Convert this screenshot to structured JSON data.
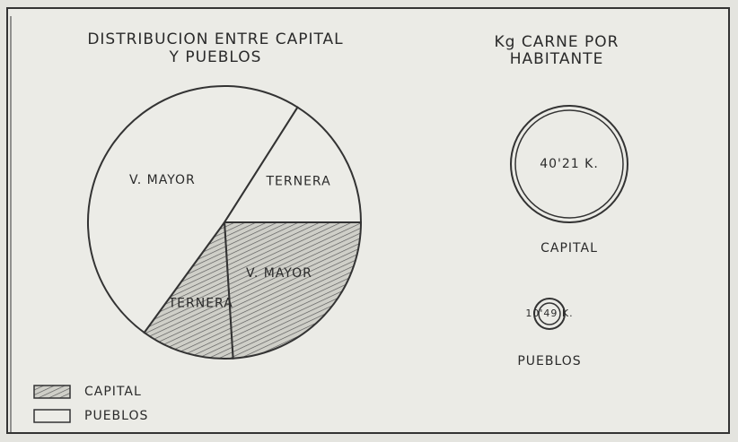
{
  "chart_data": [
    {
      "type": "pie",
      "title_lines": [
        "DISTRIBUCION ENTRE CAPITAL",
        "Y PUEBLOS"
      ],
      "series": [
        {
          "name": "CAPITAL",
          "pattern": "hatch",
          "categories": [
            "V. MAYOR",
            "TERNERA"
          ],
          "values": [
            24,
            11
          ]
        },
        {
          "name": "PUEBLOS",
          "pattern": "none",
          "categories": [
            "V. MAYOR",
            "TERNERA"
          ],
          "values": [
            49,
            16
          ]
        }
      ]
    },
    {
      "type": "circle",
      "title_lines": [
        "Kg CARNE POR",
        "HABITANTE"
      ],
      "categories": [
        "CAPITAL",
        "PUEBLOS"
      ],
      "values": [
        40.21,
        10.49
      ],
      "value_labels": [
        "40'21 K.",
        "10'49 K."
      ]
    }
  ]
}
